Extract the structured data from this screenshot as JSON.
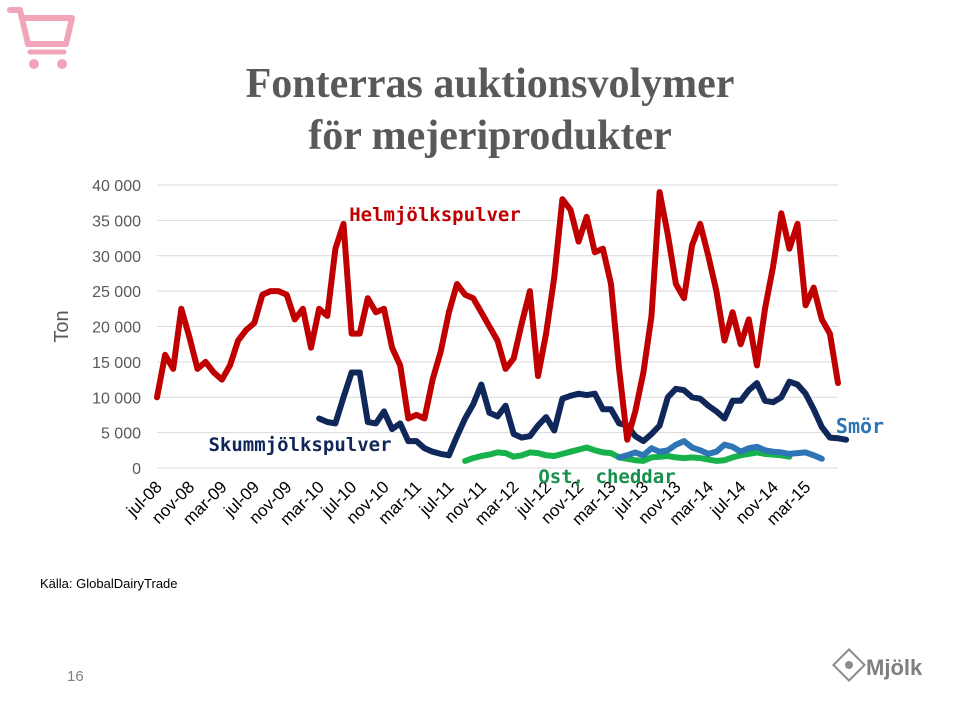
{
  "slide": {
    "title_line1": "Fonterras auktionsvolymer",
    "title_line2": "för mejeriprodukter",
    "source": "Källa: GlobalDairyTrade",
    "page_number": "16",
    "logo_text": "Mjölk"
  },
  "colors": {
    "title": "#595959",
    "helmjolk": "#c00000",
    "skummjolk": "#10275a",
    "smor": "#2e75b6",
    "ost": "#17b24b",
    "label_red": "#c00000",
    "label_navy": "#10275a",
    "label_smor": "#2e75b6",
    "label_ost": "#17904b",
    "cart": "#f2a5b8"
  },
  "chart_data": {
    "type": "line",
    "ylabel": "Ton",
    "xlabel": "",
    "ylim": [
      0,
      40000
    ],
    "yticks": [
      0,
      5000,
      10000,
      15000,
      20000,
      25000,
      30000,
      35000,
      40000
    ],
    "ytick_labels": [
      "0",
      "5 000",
      "10 000",
      "15 000",
      "20 000",
      "25 000",
      "30 000",
      "35 000",
      "40 000"
    ],
    "x_start": "2008-07",
    "x_tick_every": 4,
    "xtick_labels": [
      "jul-08",
      "nov-08",
      "mar-09",
      "jul-09",
      "nov-09",
      "mar-10",
      "jul-10",
      "nov-10",
      "mar-11",
      "jul-11",
      "nov-11",
      "mar-12",
      "jul-12",
      "nov-12",
      "mar-13",
      "jul-13",
      "nov-13",
      "mar-14",
      "jul-14",
      "nov-14",
      "mar-15"
    ],
    "grid": true,
    "series": [
      {
        "name": "Helmjölkspulver",
        "color_key": "helmjolk",
        "start_index": 0,
        "values": [
          10000,
          16000,
          14000,
          22500,
          18500,
          14000,
          15000,
          13500,
          12500,
          14500,
          18000,
          19500,
          20500,
          24500,
          25000,
          25000,
          24500,
          21000,
          22500,
          17000,
          22500,
          21500,
          31000,
          34500,
          19000,
          19000,
          24000,
          22000,
          22500,
          17000,
          14500,
          7000,
          7500,
          7000,
          12500,
          16500,
          22000,
          26000,
          24500,
          24000,
          22000,
          20000,
          18000,
          14000,
          15500,
          20500,
          25000,
          13000,
          19000,
          27000,
          38000,
          36500,
          32000,
          35500,
          30500,
          31000,
          26000,
          14000,
          4000,
          8000,
          13500,
          21500,
          39000,
          33000,
          26000,
          24000,
          31500,
          34500,
          30000,
          25000,
          18000,
          22000,
          17500,
          21000,
          14500,
          22500,
          28500,
          36000,
          31000,
          34500,
          23000,
          25500,
          21000,
          19000,
          12000
        ]
      },
      {
        "name": "Skummjölkspulver",
        "color_key": "skummjolk",
        "start_index": 20,
        "values": [
          7000,
          6500,
          6300,
          10000,
          13500,
          13500,
          6500,
          6300,
          8000,
          5500,
          6300,
          3800,
          3800,
          2800,
          2300,
          2000,
          1800,
          4500,
          7000,
          9000,
          11800,
          7800,
          7300,
          8800,
          4800,
          4300,
          4500,
          6000,
          7200,
          5300,
          9800,
          10200,
          10500,
          10300,
          10500,
          8300,
          8300,
          6300,
          6000,
          4500,
          3800,
          4800,
          6000,
          10000,
          11200,
          11000,
          10000,
          9800,
          8800,
          8000,
          7000,
          9500,
          9500,
          11000,
          12000,
          9500,
          9300,
          10000,
          12200,
          11800,
          10500,
          8300,
          5800,
          4300,
          4200,
          4000
        ]
      },
      {
        "name": "Smör",
        "color_key": "smor",
        "start_index": 57,
        "values": [
          1500,
          1800,
          2200,
          1800,
          2800,
          2300,
          2500,
          3300,
          3800,
          2900,
          2500,
          2000,
          2300,
          3300,
          3000,
          2300,
          2800,
          3000,
          2500,
          2300,
          2200,
          2000,
          2100,
          2200,
          1800,
          1300
        ]
      },
      {
        "name": "Ost, cheddar",
        "color_key": "ost",
        "start_index": 38,
        "values": [
          1000,
          1400,
          1700,
          1900,
          2200,
          2100,
          1600,
          1800,
          2200,
          2100,
          1800,
          1700,
          2000,
          2300,
          2600,
          2900,
          2500,
          2200,
          2100,
          1500,
          1300,
          1100,
          1000,
          1500,
          1600,
          1700,
          1500,
          1400,
          1500,
          1400,
          1200,
          1000,
          1100,
          1500,
          1800,
          2000,
          2200,
          2000,
          1900,
          1800,
          1600
        ]
      }
    ],
    "annotations": [
      {
        "text": "Helmjölkspulver",
        "series": "Helmjölkspulver"
      },
      {
        "text": "Skummjölkspulver",
        "series": "Skummjölkspulver"
      },
      {
        "text": "Smör",
        "series": "Smör"
      },
      {
        "text": "Ost, cheddar",
        "series": "Ost, cheddar"
      }
    ]
  }
}
